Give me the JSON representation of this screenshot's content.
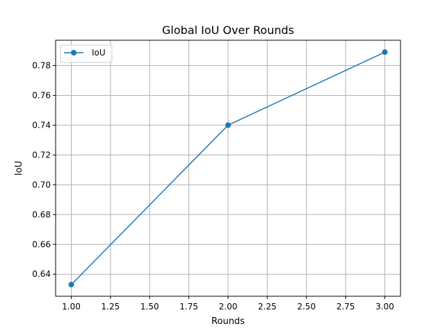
{
  "chart_data": {
    "type": "line",
    "title": "Global IoU Over Rounds",
    "xlabel": "Rounds",
    "ylabel": "IoU",
    "xlim": [
      0.9,
      3.1
    ],
    "ylim": [
      0.6252,
      0.797
    ],
    "x_ticks": [
      {
        "value": 1.0,
        "label": "1.00"
      },
      {
        "value": 1.25,
        "label": "1.25"
      },
      {
        "value": 1.5,
        "label": "1.50"
      },
      {
        "value": 1.75,
        "label": "1.75"
      },
      {
        "value": 2.0,
        "label": "2.00"
      },
      {
        "value": 2.25,
        "label": "2.25"
      },
      {
        "value": 2.5,
        "label": "2.50"
      },
      {
        "value": 2.75,
        "label": "2.75"
      },
      {
        "value": 3.0,
        "label": "3.00"
      }
    ],
    "y_ticks": [
      {
        "value": 0.64,
        "label": "0.64"
      },
      {
        "value": 0.66,
        "label": "0.66"
      },
      {
        "value": 0.68,
        "label": "0.68"
      },
      {
        "value": 0.7,
        "label": "0.70"
      },
      {
        "value": 0.72,
        "label": "0.72"
      },
      {
        "value": 0.74,
        "label": "0.74"
      },
      {
        "value": 0.76,
        "label": "0.76"
      },
      {
        "value": 0.78,
        "label": "0.78"
      }
    ],
    "grid": true,
    "legend_position": "top-left",
    "series": [
      {
        "name": "IoU",
        "color": "#1f77b4",
        "marker": "circle",
        "x": [
          1,
          2,
          3
        ],
        "y": [
          0.633,
          0.74,
          0.789
        ]
      }
    ]
  }
}
